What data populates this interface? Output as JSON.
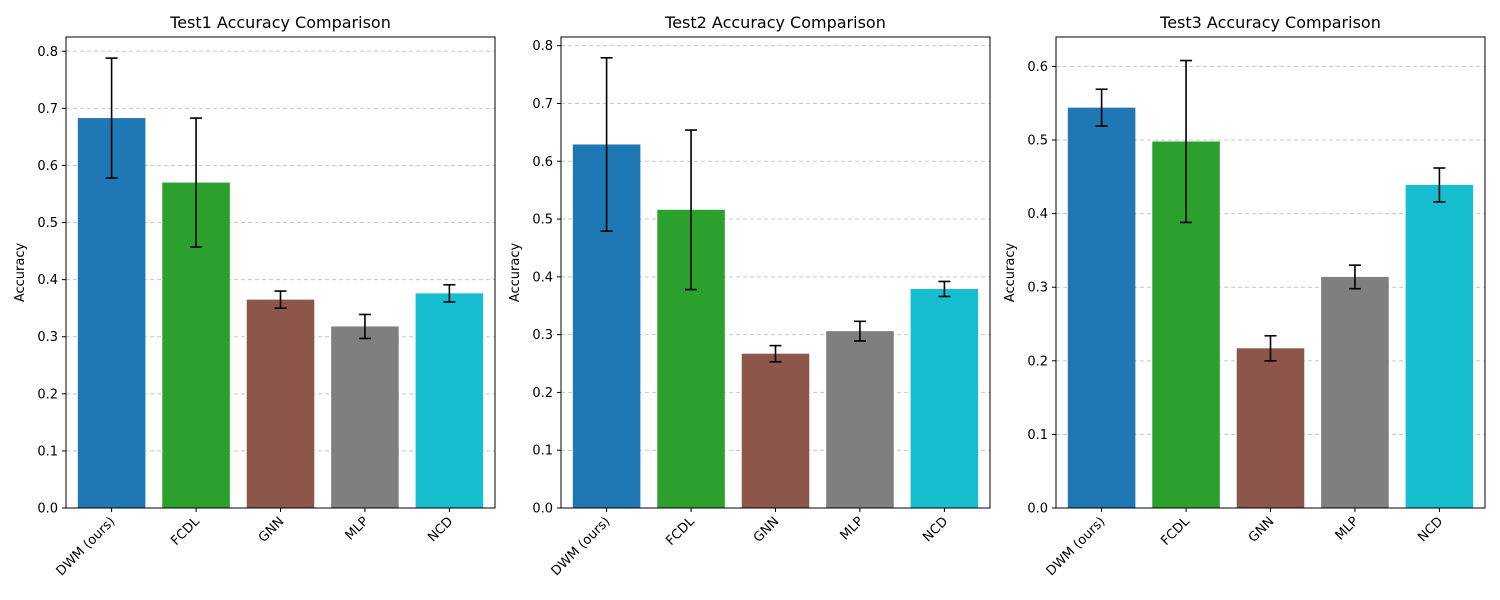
{
  "chart_data": [
    {
      "type": "bar",
      "title": "Test1 Accuracy Comparison",
      "xlabel": "",
      "ylabel": "Accuracy",
      "categories": [
        "DWM (ours)",
        "FCDL",
        "GNN",
        "MLP",
        "NCD"
      ],
      "values": [
        0.683,
        0.57,
        0.365,
        0.318,
        0.376
      ],
      "errors": [
        0.105,
        0.113,
        0.015,
        0.021,
        0.015
      ],
      "colors": [
        "#1f77b4",
        "#2ca02c",
        "#8c564b",
        "#7f7f7f",
        "#17becf"
      ],
      "ylim": [
        0,
        0.825
      ],
      "yticks": [
        0.0,
        0.1,
        0.2,
        0.3,
        0.4,
        0.5,
        0.6,
        0.7,
        0.8
      ],
      "ytick_labels": [
        "0.0",
        "0.1",
        "0.2",
        "0.3",
        "0.4",
        "0.5",
        "0.6",
        "0.7",
        "0.8"
      ],
      "grid": "y-dashed"
    },
    {
      "type": "bar",
      "title": "Test2 Accuracy Comparison",
      "xlabel": "",
      "ylabel": "Accuracy",
      "categories": [
        "DWM (ours)",
        "FCDL",
        "GNN",
        "MLP",
        "NCD"
      ],
      "values": [
        0.629,
        0.516,
        0.267,
        0.306,
        0.379
      ],
      "errors": [
        0.15,
        0.138,
        0.014,
        0.017,
        0.013
      ],
      "colors": [
        "#1f77b4",
        "#2ca02c",
        "#8c564b",
        "#7f7f7f",
        "#17becf"
      ],
      "ylim": [
        0,
        0.815
      ],
      "yticks": [
        0.0,
        0.1,
        0.2,
        0.3,
        0.4,
        0.5,
        0.6,
        0.7,
        0.8
      ],
      "ytick_labels": [
        "0.0",
        "0.1",
        "0.2",
        "0.3",
        "0.4",
        "0.5",
        "0.6",
        "0.7",
        "0.8"
      ],
      "grid": "y-dashed"
    },
    {
      "type": "bar",
      "title": "Test3 Accuracy Comparison",
      "xlabel": "",
      "ylabel": "Accuracy",
      "categories": [
        "DWM (ours)",
        "FCDL",
        "GNN",
        "MLP",
        "NCD"
      ],
      "values": [
        0.544,
        0.498,
        0.217,
        0.314,
        0.439
      ],
      "errors": [
        0.025,
        0.11,
        0.017,
        0.016,
        0.023
      ],
      "colors": [
        "#1f77b4",
        "#2ca02c",
        "#8c564b",
        "#7f7f7f",
        "#17becf"
      ],
      "ylim": [
        0,
        0.64
      ],
      "yticks": [
        0.0,
        0.1,
        0.2,
        0.3,
        0.4,
        0.5,
        0.6
      ],
      "ytick_labels": [
        "0.0",
        "0.1",
        "0.2",
        "0.3",
        "0.4",
        "0.5",
        "0.6"
      ],
      "grid": "y-dashed"
    }
  ]
}
